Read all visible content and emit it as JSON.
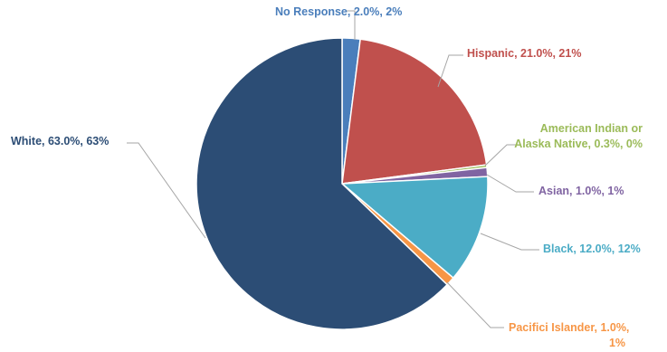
{
  "chart_data": {
    "type": "pie",
    "title": "",
    "slices": [
      {
        "name": "No Response",
        "value": 2.0,
        "color": "#4a7ebb",
        "label_lines": [
          "No Response, 2.0%, 2%"
        ]
      },
      {
        "name": "Hispanic",
        "value": 21.0,
        "color": "#c0504d",
        "label_lines": [
          "Hispanic, 21.0%, 21%"
        ]
      },
      {
        "name": "American Indian or Alaska Native",
        "value": 0.3,
        "color": "#9bbb59",
        "label_lines": [
          "American Indian or",
          "Alaska Native, 0.3%, 0%"
        ]
      },
      {
        "name": "Asian",
        "value": 1.0,
        "color": "#8064a2",
        "label_lines": [
          "Asian, 1.0%, 1%"
        ]
      },
      {
        "name": "Black",
        "value": 12.0,
        "color": "#4bacc6",
        "label_lines": [
          "Black, 12.0%, 12%"
        ]
      },
      {
        "name": "Pacifici Islander",
        "value": 1.0,
        "color": "#f79646",
        "label_lines": [
          "Pacifici Islander, 1.0%,",
          "1%"
        ]
      },
      {
        "name": "White",
        "value": 63.0,
        "color": "#2c4d75",
        "label_lines": [
          "White, 63.0%, 63%"
        ]
      }
    ],
    "legend": "none",
    "data_labels": "outside with leader lines"
  }
}
